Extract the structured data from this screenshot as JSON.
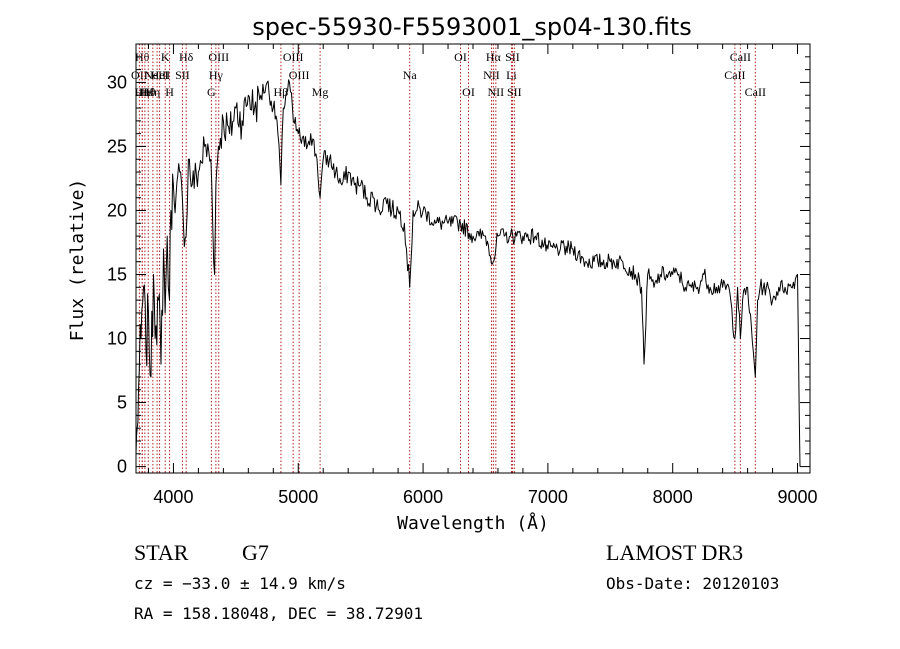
{
  "chart_data": {
    "type": "line",
    "title": "spec-55930-F5593001_sp04-130.fits",
    "xlabel": "Wavelength (Å)",
    "ylabel": "Flux (relative)",
    "xlim": [
      3700,
      9100
    ],
    "ylim": [
      -0.5,
      33
    ],
    "xticks": [
      4000,
      5000,
      6000,
      7000,
      8000,
      9000
    ],
    "yticks": [
      0,
      5,
      10,
      15,
      20,
      25,
      30
    ],
    "series": [
      {
        "name": "flux",
        "x": [
          3700,
          3710,
          3720,
          3740,
          3760,
          3780,
          3800,
          3820,
          3840,
          3860,
          3880,
          3900,
          3920,
          3933,
          3950,
          3968,
          3980,
          4000,
          4020,
          4050,
          4080,
          4101,
          4120,
          4150,
          4200,
          4250,
          4300,
          4330,
          4340,
          4360,
          4400,
          4450,
          4500,
          4550,
          4600,
          4650,
          4700,
          4750,
          4800,
          4830,
          4861,
          4880,
          4900,
          4930,
          4960,
          5000,
          5050,
          5100,
          5150,
          5175,
          5200,
          5250,
          5300,
          5350,
          5400,
          5450,
          5500,
          5550,
          5600,
          5650,
          5700,
          5750,
          5800,
          5850,
          5893,
          5920,
          6000,
          6100,
          6200,
          6300,
          6400,
          6450,
          6500,
          6563,
          6600,
          6650,
          6700,
          6750,
          6800,
          6900,
          7000,
          7100,
          7200,
          7300,
          7400,
          7500,
          7600,
          7700,
          7750,
          7770,
          7800,
          7850,
          7900,
          7950,
          8000,
          8050,
          8100,
          8150,
          8200,
          8250,
          8300,
          8350,
          8400,
          8450,
          8498,
          8520,
          8542,
          8560,
          8600,
          8662,
          8680,
          8700,
          8750,
          8800,
          8850,
          8900,
          8950,
          9000,
          9020
        ],
        "y": [
          1,
          3,
          6,
          10,
          14,
          9,
          12,
          7,
          15,
          11,
          13,
          8,
          17,
          12,
          18,
          13,
          20,
          22,
          21,
          23,
          19,
          18,
          24,
          22,
          23,
          25,
          24,
          15,
          22,
          25,
          27,
          26,
          28,
          27,
          29,
          28,
          29,
          30,
          28,
          27,
          22,
          28,
          29,
          30,
          27,
          26,
          25,
          26,
          24,
          21,
          24,
          24,
          23,
          22,
          23,
          22,
          22,
          21,
          21,
          20,
          21,
          20,
          20,
          19,
          14,
          20,
          20,
          19,
          19,
          19,
          18,
          18,
          18,
          16,
          18,
          18,
          18,
          18,
          18,
          18,
          17,
          17,
          17,
          16,
          16,
          16,
          16,
          15,
          14,
          8,
          15,
          14,
          15,
          15,
          15,
          15,
          14,
          14,
          14,
          15,
          14,
          14,
          14,
          14,
          10,
          14,
          10,
          13,
          14,
          7,
          13,
          14,
          14,
          13,
          14,
          14,
          14,
          15,
          0
        ]
      }
    ],
    "line_markers": [
      {
        "w": 3750,
        "label": "Hθ",
        "row": 1
      },
      {
        "w": 3727,
        "label": "OII",
        "row": 2
      },
      {
        "w": 3750,
        "label": "Hη",
        "row": 3
      },
      {
        "w": 3771,
        "label": "Hι",
        "row": 3
      },
      {
        "w": 3798,
        "label": "Hθ",
        "row": 3
      },
      {
        "w": 3835,
        "label": "Hη",
        "row": 3
      },
      {
        "w": 3869,
        "label": "NeIII",
        "row": 2
      },
      {
        "w": 3889,
        "label": "HeI",
        "row": 2
      },
      {
        "w": 3934,
        "label": "K",
        "row": 1
      },
      {
        "w": 3969,
        "label": "H",
        "row": 3
      },
      {
        "w": 4072,
        "label": "SII",
        "row": 2
      },
      {
        "w": 4102,
        "label": "Hδ",
        "row": 1
      },
      {
        "w": 4304,
        "label": "G",
        "row": 3
      },
      {
        "w": 4340,
        "label": "Hγ",
        "row": 2
      },
      {
        "w": 4363,
        "label": "OIII",
        "row": 1
      },
      {
        "w": 4861,
        "label": "Hβ",
        "row": 3
      },
      {
        "w": 4959,
        "label": "OIII",
        "row": 1
      },
      {
        "w": 5007,
        "label": "OIII",
        "row": 2
      },
      {
        "w": 5175,
        "label": "Mg",
        "row": 3
      },
      {
        "w": 5893,
        "label": "Na",
        "row": 2
      },
      {
        "w": 6300,
        "label": "OI",
        "row": 1
      },
      {
        "w": 6364,
        "label": "OI",
        "row": 3
      },
      {
        "w": 6548,
        "label": "NII",
        "row": 2
      },
      {
        "w": 6563,
        "label": "Hα",
        "row": 1
      },
      {
        "w": 6583,
        "label": "NII",
        "row": 3
      },
      {
        "w": 6708,
        "label": "Li",
        "row": 2
      },
      {
        "w": 6716,
        "label": "SII",
        "row": 1
      },
      {
        "w": 6731,
        "label": "SII",
        "row": 3
      },
      {
        "w": 8498,
        "label": "CaII",
        "row": 2
      },
      {
        "w": 8542,
        "label": "CaII",
        "row": 1
      },
      {
        "w": 8662,
        "label": "CaII",
        "row": 3
      }
    ]
  },
  "info": {
    "class": "STAR",
    "subclass": "G7",
    "cz": "cz = −33.0 ± 14.9 km/s",
    "radec": "RA = 158.18048, DEC =  38.72901",
    "survey": "LAMOST DR3",
    "obsdate": "Obs-Date: 20120103"
  }
}
